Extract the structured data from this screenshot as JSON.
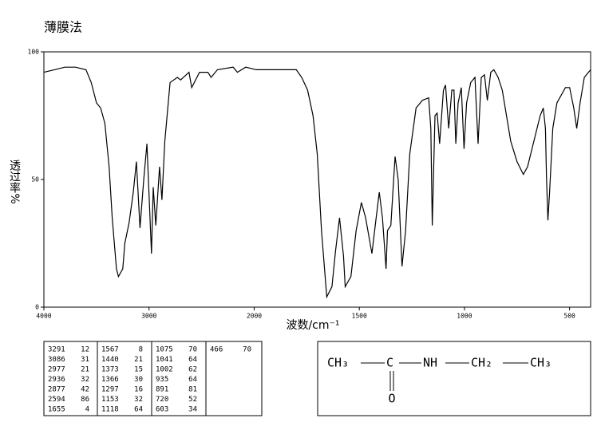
{
  "chart_data": {
    "type": "line",
    "title": "薄膜法",
    "x_label": "波数/cm⁻¹",
    "y_label": "透过率%",
    "x": [
      4000,
      3900,
      3800,
      3700,
      3600,
      3550,
      3500,
      3460,
      3420,
      3380,
      3350,
      3310,
      3291,
      3250,
      3230,
      3190,
      3150,
      3120,
      3086,
      3050,
      3020,
      2977,
      2960,
      2936,
      2900,
      2877,
      2850,
      2800,
      2730,
      2700,
      2620,
      2594,
      2520,
      2440,
      2410,
      2350,
      2200,
      2160,
      2080,
      1990,
      1800,
      1774,
      1746,
      1720,
      1700,
      1680,
      1655,
      1630,
      1613,
      1594,
      1575,
      1567,
      1540,
      1515,
      1490,
      1470,
      1440,
      1420,
      1405,
      1390,
      1373,
      1366,
      1350,
      1330,
      1315,
      1297,
      1280,
      1260,
      1230,
      1200,
      1170,
      1160,
      1153,
      1140,
      1130,
      1118,
      1100,
      1090,
      1075,
      1060,
      1050,
      1041,
      1030,
      1015,
      1002,
      990,
      970,
      950,
      935,
      920,
      905,
      891,
      875,
      860,
      840,
      820,
      800,
      780,
      750,
      720,
      700,
      670,
      640,
      625,
      615,
      610,
      603,
      595,
      580,
      560,
      520,
      500,
      480,
      466,
      450,
      430,
      400
    ],
    "values": [
      92,
      93,
      94,
      94,
      93,
      88,
      80,
      78,
      72,
      55,
      35,
      15,
      12,
      15,
      25,
      33,
      45,
      57,
      31,
      50,
      64,
      21,
      47,
      32,
      55,
      42,
      65,
      88,
      90,
      89,
      92,
      86,
      92,
      92,
      90,
      93,
      94,
      92,
      94,
      93,
      93,
      90,
      85,
      75,
      60,
      30,
      4,
      8,
      22,
      35,
      20,
      8,
      12,
      30,
      41,
      35,
      21,
      35,
      45,
      35,
      15,
      30,
      32,
      59,
      50,
      16,
      30,
      60,
      78,
      81,
      82,
      70,
      32,
      75,
      76,
      64,
      85,
      87,
      70,
      85,
      85,
      64,
      80,
      86,
      62,
      80,
      88,
      90,
      64,
      90,
      91,
      81,
      92,
      93,
      90,
      85,
      75,
      65,
      57,
      52,
      55,
      65,
      75,
      78,
      70,
      51,
      34,
      45,
      70,
      80,
      86,
      86,
      78,
      70,
      80,
      90,
      93
    ],
    "color": "#000000",
    "xlim": [
      4000,
      400
    ],
    "xticks": [
      4000,
      3000,
      2000,
      1500,
      1000,
      500
    ],
    "ylim": [
      0,
      100
    ],
    "yticks": [
      0,
      50,
      100
    ]
  },
  "peak_table": {
    "wavenumbers": [
      3291,
      3086,
      2977,
      2936,
      2877,
      2594,
      1655,
      1567,
      1440,
      1373,
      1366,
      1297,
      1153,
      1118,
      1075,
      1041,
      1002,
      935,
      891,
      720,
      603,
      466
    ],
    "transmittance": [
      12,
      31,
      21,
      32,
      42,
      86,
      4,
      8,
      21,
      15,
      30,
      16,
      32,
      64,
      70,
      64,
      62,
      64,
      81,
      52,
      34,
      70
    ]
  },
  "structure": {
    "groups": [
      "CH₃",
      "C",
      "NH",
      "CH₂",
      "CH₃"
    ],
    "oxygen": "O"
  }
}
